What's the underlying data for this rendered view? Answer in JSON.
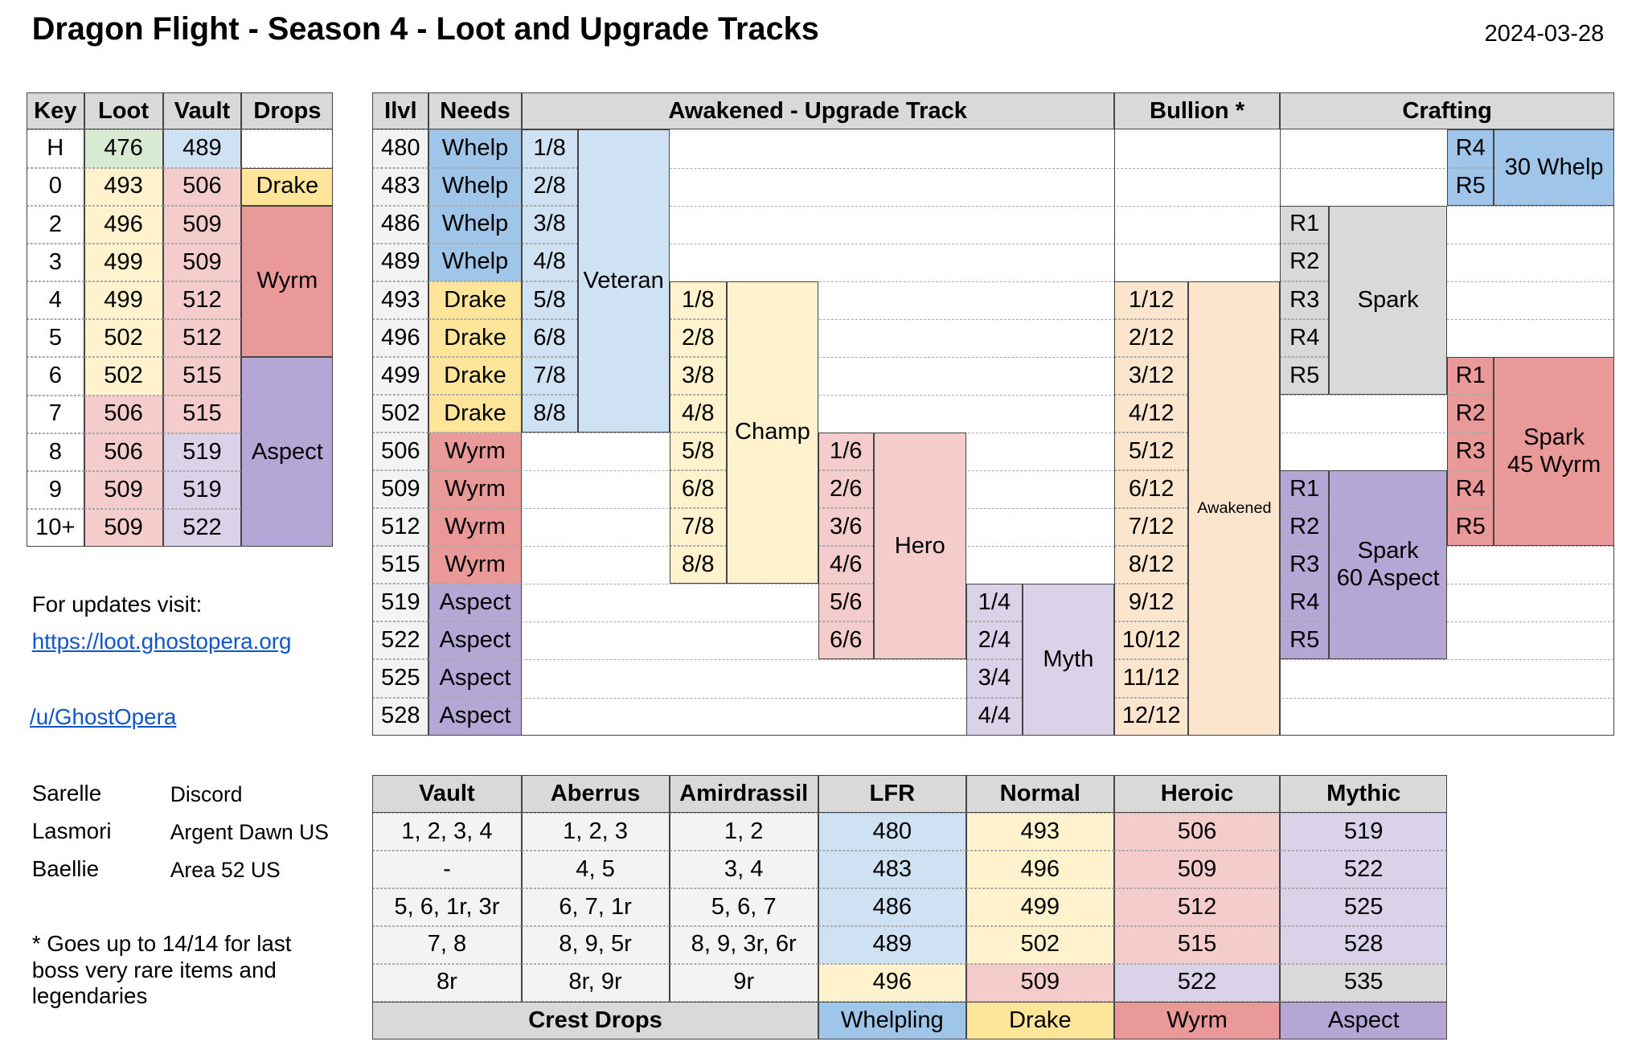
{
  "header": {
    "title": "Dragon Flight - Season 4 - Loot and Upgrade Tracks",
    "date": "2024-03-28"
  },
  "key_table": {
    "columns": [
      "Key",
      "Loot",
      "Vault",
      "Drops"
    ],
    "rows": [
      [
        "H",
        476,
        489
      ],
      [
        0,
        493,
        506
      ],
      [
        2,
        496,
        509
      ],
      [
        3,
        499,
        509
      ],
      [
        4,
        499,
        512
      ],
      [
        5,
        502,
        512
      ],
      [
        6,
        502,
        515
      ],
      [
        7,
        506,
        515
      ],
      [
        8,
        506,
        519
      ],
      [
        9,
        509,
        519
      ],
      [
        "10+",
        509,
        522
      ]
    ],
    "drops": [
      "Drake",
      "Wyrm",
      "Aspect"
    ]
  },
  "links": {
    "intro": "For updates visit:",
    "site": "https://loot.ghostopera.org",
    "reddit": "/u/GhostOpera"
  },
  "contacts": [
    [
      "Sarelle",
      "Discord"
    ],
    [
      "Lasmori",
      "Argent Dawn US"
    ],
    [
      "Baellie",
      "Area 52 US"
    ]
  ],
  "footnote": "* Goes up to 14/14 for last boss very rare items and legendaries",
  "track_table": {
    "columns": [
      "Ilvl",
      "Needs",
      "Awakened - Upgrade Track",
      "Bullion *",
      "Crafting"
    ],
    "rows": [
      [
        480,
        "Whelp"
      ],
      [
        483,
        "Whelp"
      ],
      [
        486,
        "Whelp"
      ],
      [
        489,
        "Whelp"
      ],
      [
        493,
        "Drake"
      ],
      [
        496,
        "Drake"
      ],
      [
        499,
        "Drake"
      ],
      [
        502,
        "Drake"
      ],
      [
        506,
        "Wyrm"
      ],
      [
        509,
        "Wyrm"
      ],
      [
        512,
        "Wyrm"
      ],
      [
        515,
        "Wyrm"
      ],
      [
        519,
        "Aspect"
      ],
      [
        522,
        "Aspect"
      ],
      [
        525,
        "Aspect"
      ],
      [
        528,
        "Aspect"
      ]
    ],
    "tracks": [
      {
        "name": "Veteran",
        "steps": [
          "1/8",
          "2/8",
          "3/8",
          "4/8",
          "5/8",
          "6/8",
          "7/8",
          "8/8"
        ]
      },
      {
        "name": "Champ",
        "steps": [
          "1/8",
          "2/8",
          "3/8",
          "4/8",
          "5/8",
          "6/8",
          "7/8",
          "8/8"
        ]
      },
      {
        "name": "Hero",
        "steps": [
          "1/6",
          "2/6",
          "3/6",
          "4/6",
          "5/6",
          "6/6"
        ]
      },
      {
        "name": "Myth",
        "steps": [
          "1/4",
          "2/4",
          "3/4",
          "4/4"
        ]
      }
    ],
    "bullion": {
      "name": "Awakened",
      "steps": [
        "1/12",
        "2/12",
        "3/12",
        "4/12",
        "5/12",
        "6/12",
        "7/12",
        "8/12",
        "9/12",
        "10/12",
        "11/12",
        "12/12"
      ]
    },
    "crafting": [
      {
        "name": "30 Whelp",
        "ranks": [
          "R4",
          "R5"
        ]
      },
      {
        "name": "Spark",
        "ranks": [
          "R1",
          "R2",
          "R3",
          "R4",
          "R5"
        ]
      },
      {
        "name": "Spark\n45 Wyrm",
        "ranks": [
          "R1",
          "R2",
          "R3",
          "R4",
          "R5"
        ]
      },
      {
        "name": "Spark\n60 Aspect",
        "ranks": [
          "R1",
          "R2",
          "R3",
          "R4",
          "R5"
        ]
      }
    ]
  },
  "crest_table": {
    "columns": [
      "Vault",
      "Aberrus",
      "Amirdrassil",
      "LFR",
      "Normal",
      "Heroic",
      "Mythic"
    ],
    "rows": [
      [
        "1, 2, 3, 4",
        "1, 2, 3",
        "1, 2",
        480,
        493,
        506,
        519
      ],
      [
        "-",
        "4, 5",
        "3, 4",
        483,
        496,
        509,
        522
      ],
      [
        "5, 6, 1r, 3r",
        "6, 7, 1r",
        "5, 6, 7",
        486,
        499,
        512,
        525
      ],
      [
        "7, 8",
        "8, 9, 5r",
        "8, 9, 3r, 6r",
        489,
        502,
        515,
        528
      ],
      [
        "8r",
        "8r, 9r",
        "9r",
        496,
        509,
        522,
        535
      ]
    ],
    "footer": [
      "Crest Drops",
      "Whelpling",
      "Drake",
      "Wyrm",
      "Aspect"
    ]
  }
}
